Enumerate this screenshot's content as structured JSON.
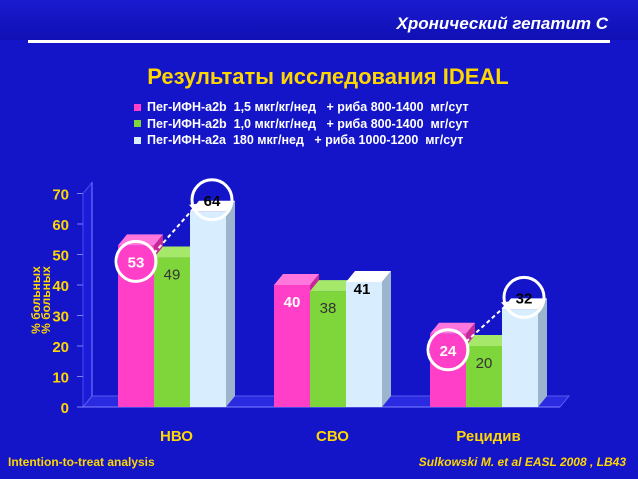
{
  "header": {
    "title": "Хронический гепатит С"
  },
  "slide": {
    "title": "Результаты исследования IDEAL"
  },
  "footer": {
    "left": "Intention-to-treat analysis",
    "right": "Sulkowski M. et al  EASL 2008 , LB43"
  },
  "colors": {
    "background": "#1414c8",
    "title": "#ffd700",
    "series1": "#ff3fc8",
    "series2": "#7fd63a",
    "series3": "#d8eeff"
  },
  "chart_data": {
    "type": "bar",
    "title": "",
    "xlabel": "",
    "ylabel": "% больных",
    "ylim": [
      0,
      70
    ],
    "yticks": [
      0,
      10,
      20,
      30,
      40,
      50,
      60,
      70
    ],
    "grid": false,
    "legend_position": "top",
    "categories": [
      "НВО",
      "СВО",
      "Рецидив"
    ],
    "series": [
      {
        "name": "Пег-ИФН-а2b  1,5 мкг/кг/нед   + риба 800-1400  мг/сут",
        "values": [
          53,
          40,
          24
        ],
        "color": "#ff3fc8"
      },
      {
        "name": "Пег-ИФН-а2b  1,0 мкг/кг/нед   + риба 800-1400  мг/сут",
        "values": [
          49,
          38,
          20
        ],
        "color": "#7fd63a"
      },
      {
        "name": "Пег-ИФН-а2а  180 мкг/нед   + риба 1000-1200  мг/сут",
        "values": [
          64,
          41,
          32
        ],
        "color": "#d8eeff"
      }
    ],
    "data_labels": [
      [
        "53",
        "49",
        "64"
      ],
      [
        "40",
        "38",
        "41"
      ],
      [
        "24",
        "20",
        "32"
      ]
    ],
    "highlighted": [
      {
        "category": "НВО",
        "series": [
          0,
          2
        ]
      },
      {
        "category": "Рецидив",
        "series": [
          0,
          2
        ]
      }
    ]
  }
}
